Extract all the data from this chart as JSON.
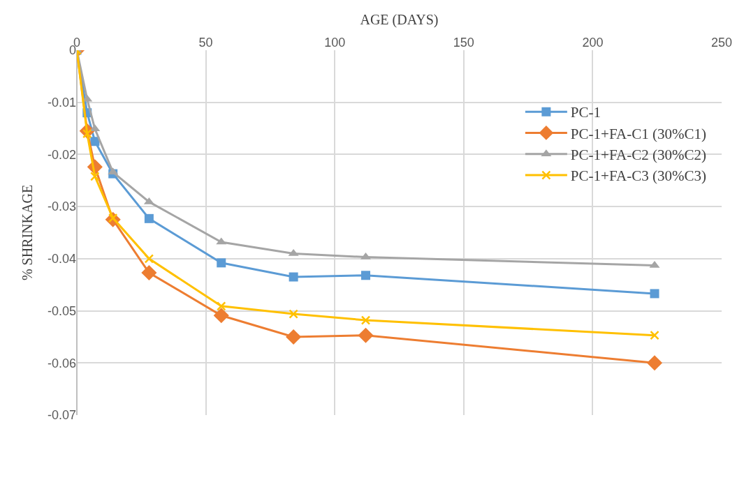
{
  "chart_data": {
    "type": "line",
    "xlabel": "AGE (DAYS)",
    "ylabel": "% SHRINKAGE",
    "x": [
      0,
      4,
      7,
      14,
      28,
      56,
      84,
      112,
      224
    ],
    "series": [
      {
        "name": "PC-1",
        "color": "#5b9bd5",
        "marker": "square",
        "values": [
          0,
          -0.012,
          -0.0175,
          -0.0237,
          -0.0323,
          -0.0408,
          -0.0435,
          -0.0432,
          -0.0467
        ]
      },
      {
        "name": "PC-1+FA-C1 (30%C1)",
        "color": "#ed7d31",
        "marker": "diamond",
        "values": [
          0,
          -0.0155,
          -0.0224,
          -0.0325,
          -0.0427,
          -0.0509,
          -0.055,
          -0.0547,
          -0.06
        ]
      },
      {
        "name": "PC-1+FA-C2 (30%C2)",
        "color": "#a5a5a5",
        "marker": "triangle",
        "values": [
          0,
          -0.0094,
          -0.0151,
          -0.0234,
          -0.0291,
          -0.0368,
          -0.039,
          -0.0397,
          -0.0413
        ]
      },
      {
        "name": "PC-1+FA-C3 (30%C3)",
        "color": "#ffc000",
        "marker": "cross",
        "values": [
          0,
          -0.016,
          -0.0242,
          -0.0322,
          -0.04,
          -0.0491,
          -0.0506,
          -0.0518,
          -0.0547
        ]
      }
    ],
    "xlim": [
      0,
      250
    ],
    "xticks": [
      0,
      50,
      100,
      150,
      200,
      250
    ],
    "ylim": [
      -0.07,
      0
    ],
    "yticks": [
      -0.07,
      -0.06,
      -0.05,
      -0.04,
      -0.03,
      -0.02,
      -0.01,
      0
    ],
    "grid": true,
    "legend": "right",
    "line_style": "solid"
  }
}
